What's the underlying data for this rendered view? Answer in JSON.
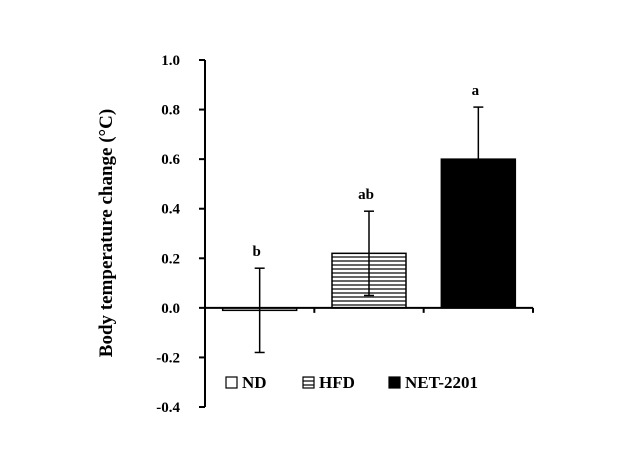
{
  "chart_data": {
    "type": "bar",
    "title": "",
    "xlabel": "",
    "ylabel": "Body temperature change (°C)",
    "ylim": [
      -0.4,
      1.0
    ],
    "yticks": [
      "1.0",
      "0.8",
      "0.6",
      "0.4",
      "0.2",
      "0.0",
      "-0.2",
      "-0.4"
    ],
    "categories": [
      "ND",
      "HFD",
      "NET-2201"
    ],
    "values": [
      -0.01,
      0.22,
      0.6
    ],
    "errors": [
      0.17,
      0.17,
      0.21
    ],
    "significance": [
      "b",
      "ab",
      "a"
    ],
    "fills": [
      "white",
      "horizontal-stripes",
      "black"
    ],
    "legend": {
      "placement": "bottom",
      "items": [
        {
          "label": "ND",
          "fill": "white"
        },
        {
          "label": "HFD",
          "fill": "horizontal-stripes"
        },
        {
          "label": "NET-2201",
          "fill": "black"
        }
      ]
    },
    "grid": false,
    "colors": {
      "bar_stroke": "#000000",
      "axis": "#000000",
      "solid": "#000000"
    }
  }
}
